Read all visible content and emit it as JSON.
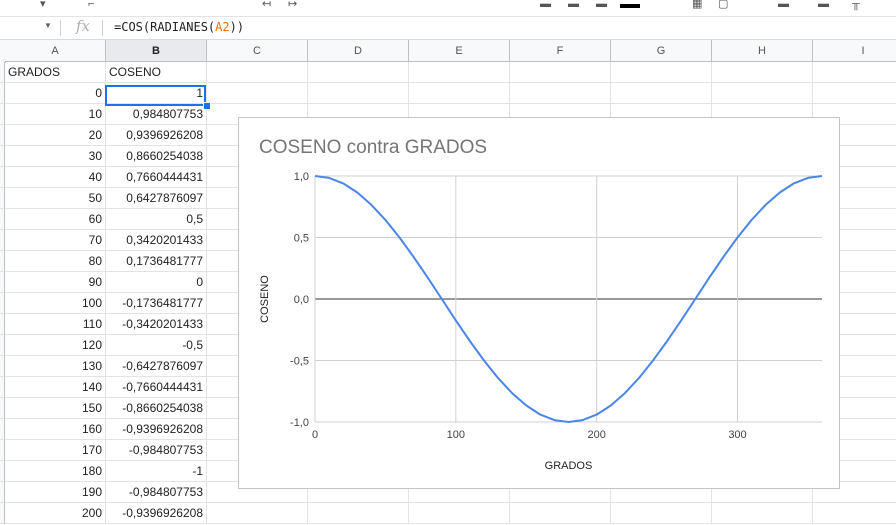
{
  "formula_bar": {
    "fx_label": "fx",
    "formula_prefix": "=COS(RADIANES(",
    "formula_ref": "A2",
    "formula_suffix": "))"
  },
  "columns": [
    "A",
    "B",
    "C",
    "D",
    "E",
    "F",
    "G",
    "H",
    "I"
  ],
  "headers": {
    "a": "GRADOS",
    "b": "COSENO"
  },
  "rows": [
    {
      "a": "0",
      "b": "1"
    },
    {
      "a": "10",
      "b": "0,984807753"
    },
    {
      "a": "20",
      "b": "0,9396926208"
    },
    {
      "a": "30",
      "b": "0,8660254038"
    },
    {
      "a": "40",
      "b": "0,7660444431"
    },
    {
      "a": "50",
      "b": "0,6427876097"
    },
    {
      "a": "60",
      "b": "0,5"
    },
    {
      "a": "70",
      "b": "0,3420201433"
    },
    {
      "a": "80",
      "b": "0,1736481777"
    },
    {
      "a": "90",
      "b": "0"
    },
    {
      "a": "100",
      "b": "-0,1736481777"
    },
    {
      "a": "110",
      "b": "-0,3420201433"
    },
    {
      "a": "120",
      "b": "-0,5"
    },
    {
      "a": "130",
      "b": "-0,6427876097"
    },
    {
      "a": "140",
      "b": "-0,7660444431"
    },
    {
      "a": "150",
      "b": "-0,8660254038"
    },
    {
      "a": "160",
      "b": "-0,9396926208"
    },
    {
      "a": "170",
      "b": "-0,984807753"
    },
    {
      "a": "180",
      "b": "-1"
    },
    {
      "a": "190",
      "b": "-0,984807753"
    },
    {
      "a": "200",
      "b": "-0,9396926208"
    }
  ],
  "selected_cell": "B2",
  "chart_data": {
    "type": "line",
    "title": "COSENO contra GRADOS",
    "xlabel": "GRADOS",
    "ylabel": "COSENO",
    "xlim": [
      0,
      360
    ],
    "ylim": [
      -1,
      1
    ],
    "x_ticks": [
      "0",
      "100",
      "200",
      "300"
    ],
    "y_ticks": [
      "1,0",
      "0,5",
      "0,0",
      "-0,5",
      "-1,0"
    ],
    "grid": true,
    "legend": "none",
    "line_color": "#4a86e8",
    "series": [
      {
        "x": [
          0,
          10,
          20,
          30,
          40,
          50,
          60,
          70,
          80,
          90,
          100,
          110,
          120,
          130,
          140,
          150,
          160,
          170,
          180,
          190,
          200,
          210,
          220,
          230,
          240,
          250,
          260,
          270,
          280,
          290,
          300,
          310,
          320,
          330,
          340,
          350,
          360
        ],
        "y": [
          1,
          0.9848,
          0.9397,
          0.866,
          0.766,
          0.6428,
          0.5,
          0.342,
          0.1736,
          0,
          -0.1736,
          -0.342,
          -0.5,
          -0.6428,
          -0.766,
          -0.866,
          -0.9397,
          -0.9848,
          -1,
          -0.9848,
          -0.9397,
          -0.866,
          -0.766,
          -0.6428,
          -0.5,
          -0.342,
          -0.1736,
          0,
          0.1736,
          0.342,
          0.5,
          0.6428,
          0.766,
          0.866,
          0.9397,
          0.9848,
          1
        ]
      }
    ]
  }
}
